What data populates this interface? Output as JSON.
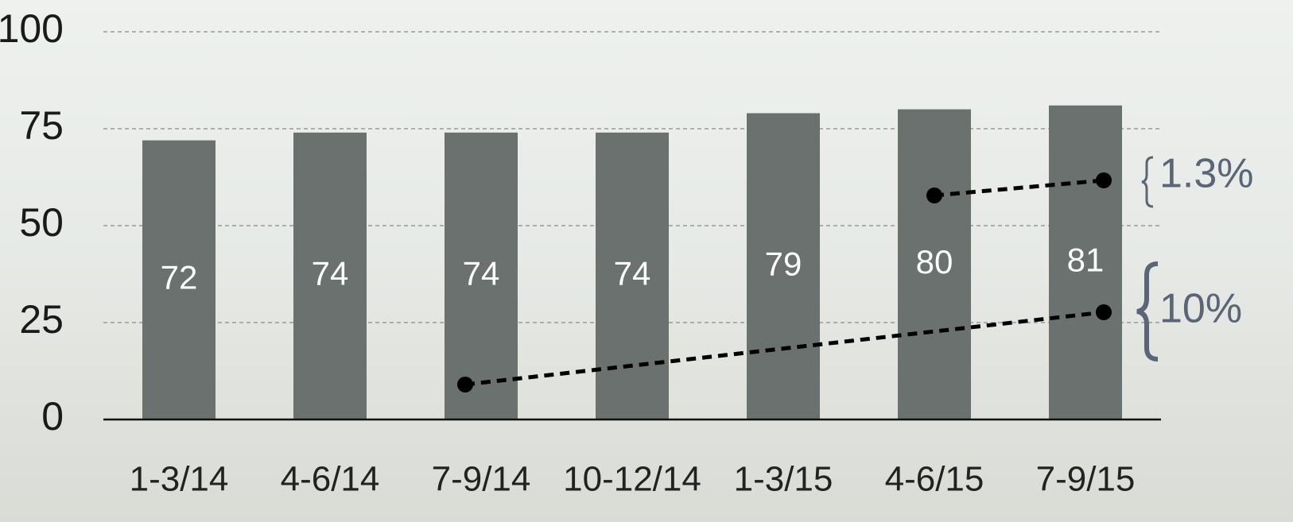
{
  "chart_data": {
    "type": "bar",
    "categories": [
      "1-3/14",
      "4-6/14",
      "7-9/14",
      "10-12/14",
      "1-3/15",
      "4-6/15",
      "7-9/15"
    ],
    "values": [
      72,
      74,
      74,
      74,
      79,
      80,
      81
    ],
    "color": "#6b716e",
    "ylim": [
      0,
      100
    ],
    "yticks": [
      0,
      25,
      50,
      75,
      100
    ],
    "grid": true,
    "annotations": [
      "1.3%",
      "10%"
    ]
  }
}
